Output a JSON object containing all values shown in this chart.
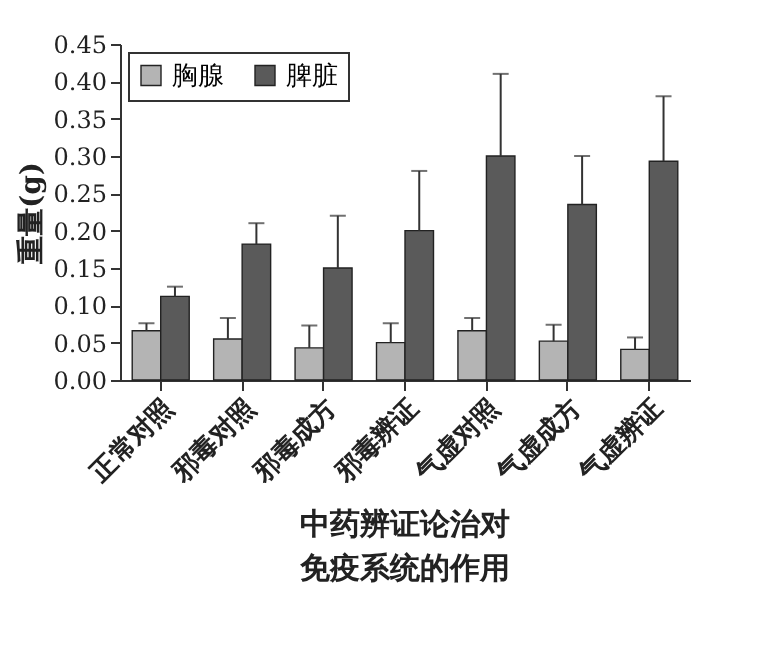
{
  "chart_data": {
    "type": "bar",
    "title": "中药辨证论治对免疫系统的作用",
    "ylabel": "重量(g)",
    "categories": [
      "正常对照",
      "邪毒对照",
      "邪毒成方",
      "邪毒辨证",
      "气虚对照",
      "气虚成方",
      "气虚辨证"
    ],
    "series": [
      {
        "name": "胸腺",
        "color": "#b4b4b4",
        "values": [
          0.066,
          0.055,
          0.043,
          0.05,
          0.066,
          0.052,
          0.041
        ],
        "errors": [
          [
            0.066,
            0.076
          ],
          [
            0.055,
            0.083
          ],
          [
            0.043,
            0.073
          ],
          [
            0.05,
            0.076
          ],
          [
            0.066,
            0.083
          ],
          [
            0.052,
            0.074
          ],
          [
            0.041,
            0.057
          ]
        ]
      },
      {
        "name": "脾脏",
        "color": "#5a5a5a",
        "values": [
          0.112,
          0.182,
          0.15,
          0.2,
          0.3,
          0.235,
          0.293
        ],
        "errors": [
          [
            0.112,
            0.125
          ],
          [
            0.182,
            0.21
          ],
          [
            0.15,
            0.22
          ],
          [
            0.2,
            0.28
          ],
          [
            0.3,
            0.41
          ],
          [
            0.235,
            0.3
          ],
          [
            0.293,
            0.38
          ]
        ]
      }
    ],
    "ylim": [
      0,
      0.45
    ],
    "yticks": [
      {
        "value": 0,
        "label": "0.00"
      },
      {
        "value": 0.05,
        "label": "0.05"
      },
      {
        "value": 0.1,
        "label": "0.10"
      },
      {
        "value": 0.15,
        "label": "0.15"
      },
      {
        "value": 0.2,
        "label": "0.20"
      },
      {
        "value": 0.25,
        "label": "0.25"
      },
      {
        "value": 0.3,
        "label": "0.30"
      },
      {
        "value": 0.35,
        "label": "0.35"
      },
      {
        "value": 0.4,
        "label": "0.40"
      },
      {
        "value": 0.45,
        "label": "0.45"
      }
    ],
    "legend": "top left",
    "grid": false
  }
}
